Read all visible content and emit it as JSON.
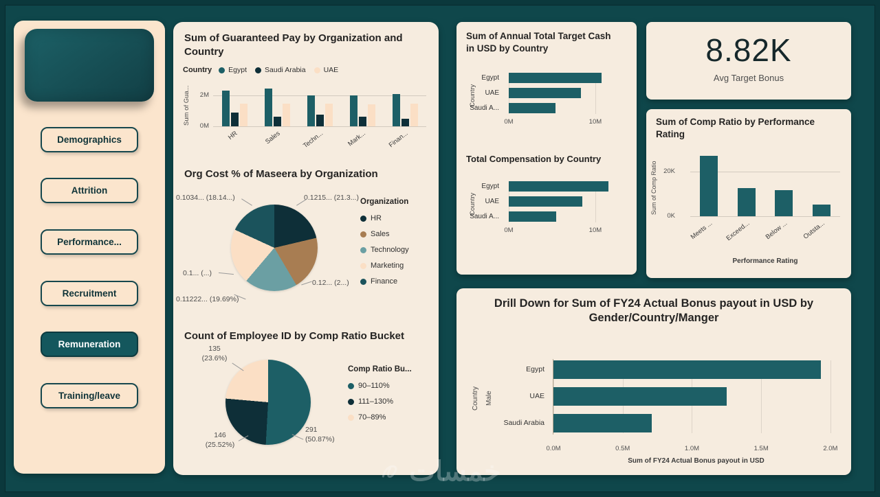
{
  "app": {
    "watermark": "خمسات"
  },
  "colors": {
    "background": "#0f474b",
    "card": "#f6ecdf",
    "sidebar": "#fbe5cd",
    "accent_teal": "#1d5f66",
    "dark_navy": "#0e2f38",
    "peach": "#fbdfc5",
    "brown": "#a87d52",
    "muted_teal": "#6b9fa3"
  },
  "sidebar": {
    "items": [
      {
        "label": "Demographics",
        "active": false
      },
      {
        "label": "Attrition",
        "active": false
      },
      {
        "label": "Performance...",
        "active": false
      },
      {
        "label": "Recruitment",
        "active": false
      },
      {
        "label": "Remuneration",
        "active": true
      },
      {
        "label": "Training/leave",
        "active": false
      }
    ]
  },
  "kpi": {
    "value": "8.82K",
    "label": "Avg Target Bonus"
  },
  "chart_data": [
    {
      "id": "guaranteed_pay",
      "type": "bar",
      "orientation": "vertical",
      "grouped": true,
      "title": "Sum of Guaranteed Pay by Organization and Country",
      "legend_title": "Country",
      "categories": [
        "HR",
        "Sales",
        "Techn...",
        "Mark...",
        "Finan..."
      ],
      "series": [
        {
          "name": "Egypt",
          "color": "#1d5f66",
          "values": [
            2.35,
            2.45,
            2.0,
            2.0,
            2.1
          ]
        },
        {
          "name": "Saudi Arabia",
          "color": "#0e2f38",
          "values": [
            0.9,
            0.65,
            0.75,
            0.65,
            0.5
          ]
        },
        {
          "name": "UAE",
          "color": "#fbdfc5",
          "values": [
            1.5,
            1.5,
            1.5,
            1.45,
            1.5
          ]
        }
      ],
      "unit": "M",
      "ymax": 2.6,
      "ylabel": "Sum of Gua...",
      "yticks": [
        {
          "label": "0M",
          "value": 0
        },
        {
          "label": "2M",
          "value": 2
        }
      ]
    },
    {
      "id": "org_cost",
      "type": "pie",
      "title": "Org Cost % of Maseera by Organization",
      "legend_title": "Organization",
      "slices": [
        {
          "name": "HR",
          "color": "#0e2f38",
          "pct": 21.3,
          "label": "0.1215... (21.3...)"
        },
        {
          "name": "Sales",
          "color": "#a87d52",
          "pct": 20.2,
          "label": "0.12... (2...)"
        },
        {
          "name": "Technology",
          "color": "#6b9fa3",
          "pct": 19.69,
          "label": "0.11222... (19.69%)"
        },
        {
          "name": "Marketing",
          "color": "#fbdfc5",
          "pct": 20.67,
          "label": "0.1... (...)"
        },
        {
          "name": "Finance",
          "color": "#1b535c",
          "pct": 18.14,
          "label": "0.1034... (18.14...)"
        }
      ]
    },
    {
      "id": "comp_ratio_bucket",
      "type": "pie",
      "title": "Count of Employee ID by Comp Ratio Bucket",
      "legend_title": "Comp Ratio Bu...",
      "slices": [
        {
          "name": "90–110%",
          "color": "#1d5f66",
          "pct": 50.87,
          "value_label": "291",
          "pct_label": "(50.87%)"
        },
        {
          "name": "111–130%",
          "color": "#0e2f38",
          "pct": 25.52,
          "value_label": "146",
          "pct_label": "(25.52%)"
        },
        {
          "name": "70–89%",
          "color": "#fbdfc5",
          "pct": 23.6,
          "value_label": "135",
          "pct_label": "(23.6%)"
        }
      ]
    },
    {
      "id": "target_cash",
      "type": "bar",
      "orientation": "horizontal",
      "title": "Sum of Annual Total Target Cash in USD by Country",
      "categories": [
        "Egypt",
        "UAE",
        "Saudi A..."
      ],
      "values": [
        10.7,
        8.3,
        5.4
      ],
      "unit": "M",
      "xmax": 13.5,
      "color": "#1d5f66",
      "ylabel": "Country",
      "xticks": [
        {
          "label": "0M",
          "value": 0
        },
        {
          "label": "10M",
          "value": 10
        }
      ]
    },
    {
      "id": "total_comp",
      "type": "bar",
      "orientation": "horizontal",
      "title": "Total Compensation by Country",
      "categories": [
        "Egypt",
        "UAE",
        "Saudi A..."
      ],
      "values": [
        11.5,
        8.5,
        5.5
      ],
      "unit": "M",
      "xmax": 13.5,
      "color": "#1d5f66",
      "ylabel": "Country",
      "xticks": [
        {
          "label": "0M",
          "value": 0
        },
        {
          "label": "10M",
          "value": 10
        }
      ]
    },
    {
      "id": "comp_ratio_rating",
      "type": "bar",
      "orientation": "vertical",
      "title": "Sum of Comp Ratio by Performance Rating",
      "categories": [
        "Meets ...",
        "Exceed...",
        "Below ...",
        "Outsta..."
      ],
      "values": [
        27,
        12.5,
        11.7,
        5.2
      ],
      "unit": "K",
      "ymax": 30,
      "color": "#1d5f66",
      "xlabel": "Performance Rating",
      "ylabel": "Sum of Comp Ratio",
      "yticks": [
        {
          "label": "0K",
          "value": 0
        },
        {
          "label": "20K",
          "value": 20
        }
      ]
    },
    {
      "id": "drill_down",
      "type": "bar",
      "orientation": "horizontal",
      "title": "Drill Down for Sum of FY24 Actual Bonus payout in USD by Gender/Country/Manger",
      "categories": [
        "Egypt",
        "UAE",
        "Saudi Arabia"
      ],
      "values": [
        1.93,
        1.25,
        0.71
      ],
      "unit": "M",
      "xmax": 2.06,
      "color": "#1d5f66",
      "xlabel": "Sum of FY24 Actual Bonus payout in USD",
      "group_labels": [
        "Country",
        "Male"
      ],
      "xticks": [
        {
          "label": "0.0M",
          "value": 0
        },
        {
          "label": "0.5M",
          "value": 0.5
        },
        {
          "label": "1.0M",
          "value": 1
        },
        {
          "label": "1.5M",
          "value": 1.5
        },
        {
          "label": "2.0M",
          "value": 2
        }
      ]
    }
  ]
}
